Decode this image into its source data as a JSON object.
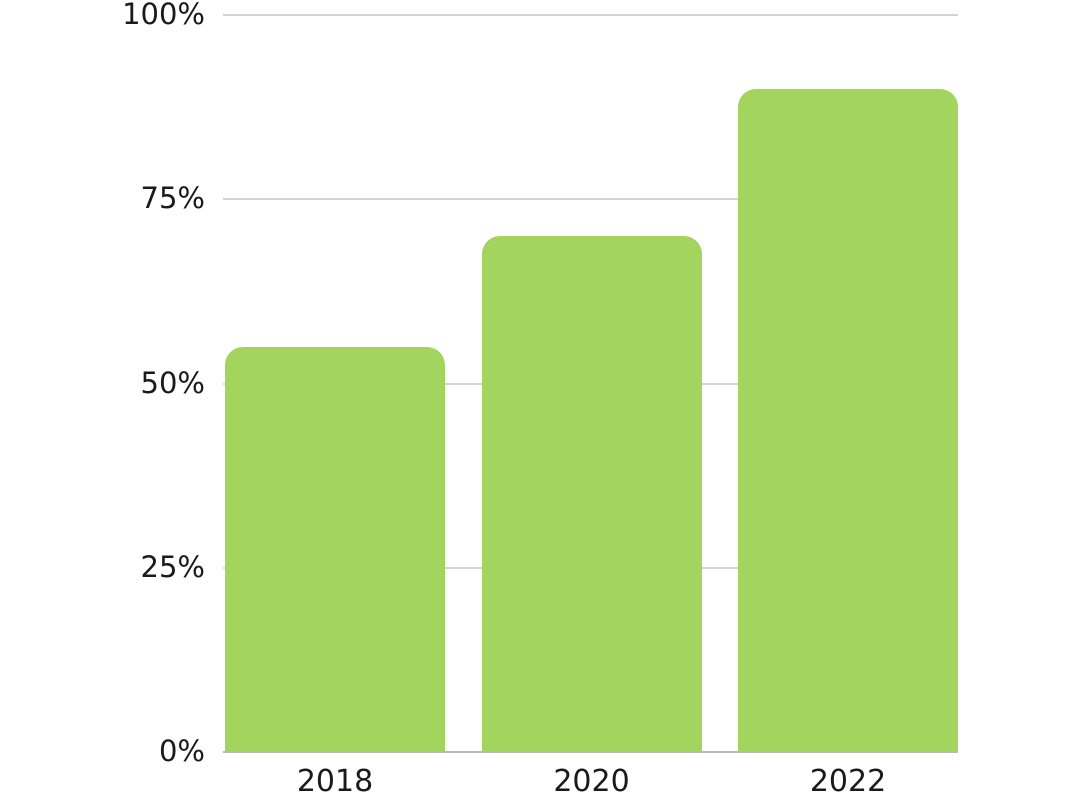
{
  "chart_data": {
    "type": "bar",
    "title": "",
    "xlabel": "",
    "ylabel": "",
    "categories": [
      "2018",
      "2020",
      "2022"
    ],
    "values": [
      55,
      70,
      90
    ],
    "value_unit": "%",
    "ylim": [
      0,
      100
    ],
    "yticks": [
      0,
      25,
      50,
      75,
      100
    ],
    "ytick_labels": [
      "0%",
      "25%",
      "50%",
      "75%",
      "100%"
    ],
    "grid": true,
    "legend": false,
    "colors": {
      "bar_fill": "#a2d45e",
      "gridline": "#d4d4d4",
      "axis_baseline": "#b9b9b9",
      "label_text": "#1a1a1a",
      "background": "#ffffff"
    }
  }
}
